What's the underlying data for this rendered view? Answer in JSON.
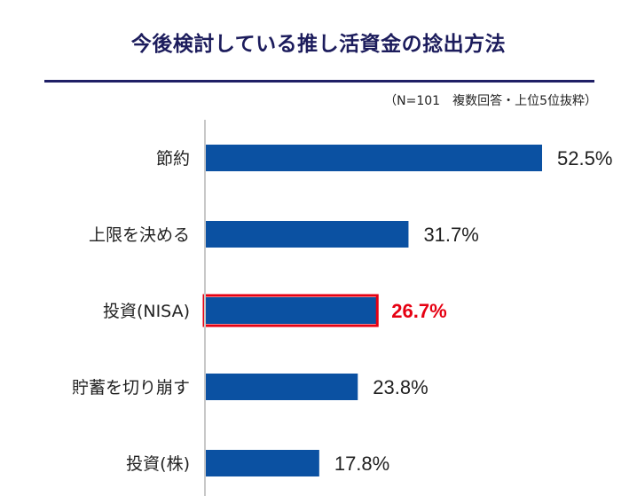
{
  "chart_data": {
    "type": "bar",
    "orientation": "horizontal",
    "title": "今後検討している推し活資金の捻出方法",
    "note": "（N=101　複数回答・上位5位抜粋）",
    "categories": [
      "節約",
      "上限を決める",
      "投資(NISA)",
      "貯蓄を切り崩す",
      "投資(株)"
    ],
    "values": [
      52.5,
      31.7,
      26.7,
      23.8,
      17.8
    ],
    "value_labels": [
      "52.5%",
      "31.7%",
      "26.7%",
      "23.8%",
      "17.8%"
    ],
    "highlight_index": 2,
    "xlim": [
      0,
      60
    ],
    "grid": false,
    "colors": {
      "bar": "#0b51a2",
      "highlight_border": "#e60012",
      "highlight_text": "#e60012",
      "title": "#1c1c5c",
      "rule": "#1f1f66",
      "axis": "#c8c8c8"
    }
  }
}
